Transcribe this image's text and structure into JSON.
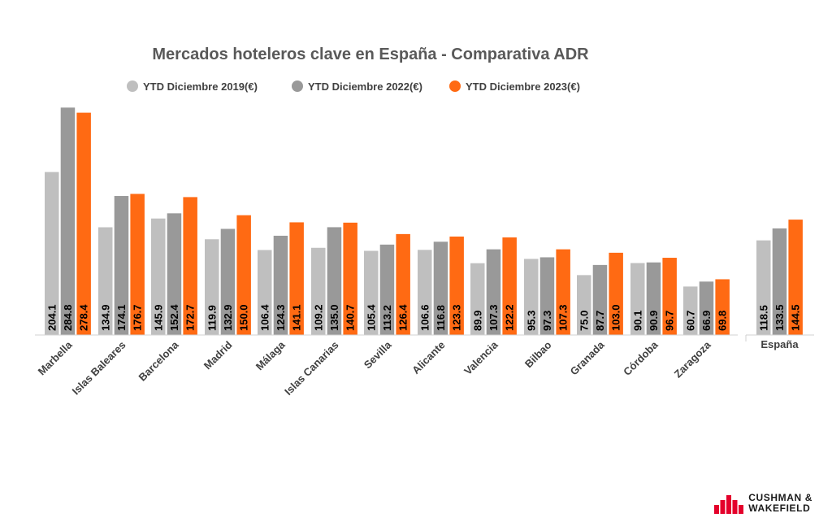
{
  "chart_data": {
    "type": "bar",
    "title": "Mercados hoteleros clave en España - Comparativa ADR",
    "categories": [
      "Marbella",
      "Islas Baleares",
      "Barcelona",
      "Madrid",
      "Málaga",
      "Islas Canarias",
      "Sevilla",
      "Alicante",
      "Valencia",
      "Bilbao",
      "Granada",
      "Córdoba",
      "Zaragoza",
      "España"
    ],
    "series": [
      {
        "name": "YTD Diciembre 2019(€)",
        "color": "#bfbfbf",
        "values": [
          204.1,
          134.9,
          145.9,
          119.9,
          106.4,
          109.2,
          105.4,
          106.6,
          89.9,
          95.3,
          75.0,
          90.1,
          60.7,
          118.5
        ]
      },
      {
        "name": "YTD Diciembre 2022(€)",
        "color": "#999999",
        "values": [
          284.8,
          174.1,
          152.4,
          132.9,
          124.3,
          135.0,
          113.2,
          116.8,
          107.3,
          97.3,
          87.7,
          90.9,
          66.9,
          133.5
        ]
      },
      {
        "name": "YTD Diciembre 2023(€)",
        "color": "#ff6a13",
        "values": [
          278.4,
          176.7,
          172.7,
          150.0,
          141.1,
          140.7,
          126.4,
          123.3,
          122.2,
          107.3,
          103.0,
          96.7,
          69.8,
          144.5
        ]
      }
    ],
    "value_labels": [
      [
        "204.1",
        "134.9",
        "145.9",
        "119.9",
        "106.4",
        "109.2",
        "105.4",
        "106.6",
        "89.9",
        "95.3",
        "75.0",
        "90.1",
        "60.7",
        "118.5"
      ],
      [
        "284.8",
        "174.1",
        "152.4",
        "132.9",
        "124.3",
        "135.0",
        "113.2",
        "116.8",
        "107.3",
        "97.3",
        "87.7",
        "90.9",
        "66.9",
        "133.5"
      ],
      [
        "278.4",
        "176.7",
        "172.7",
        "150.0",
        "141.1",
        "140.7",
        "126.4",
        "123.3",
        "122.2",
        "107.3",
        "103.0",
        "96.7",
        "69.8",
        "144.5"
      ]
    ],
    "ylim": [
      0,
      290
    ],
    "legend_position": "top",
    "grid": false,
    "xlabel": "",
    "ylabel": ""
  },
  "brand": {
    "line1": "CUSHMAN &",
    "line2": "WAKEFIELD",
    "logo_icon": "cushman-wakefield-logo-icon",
    "color": "#e4002b"
  }
}
